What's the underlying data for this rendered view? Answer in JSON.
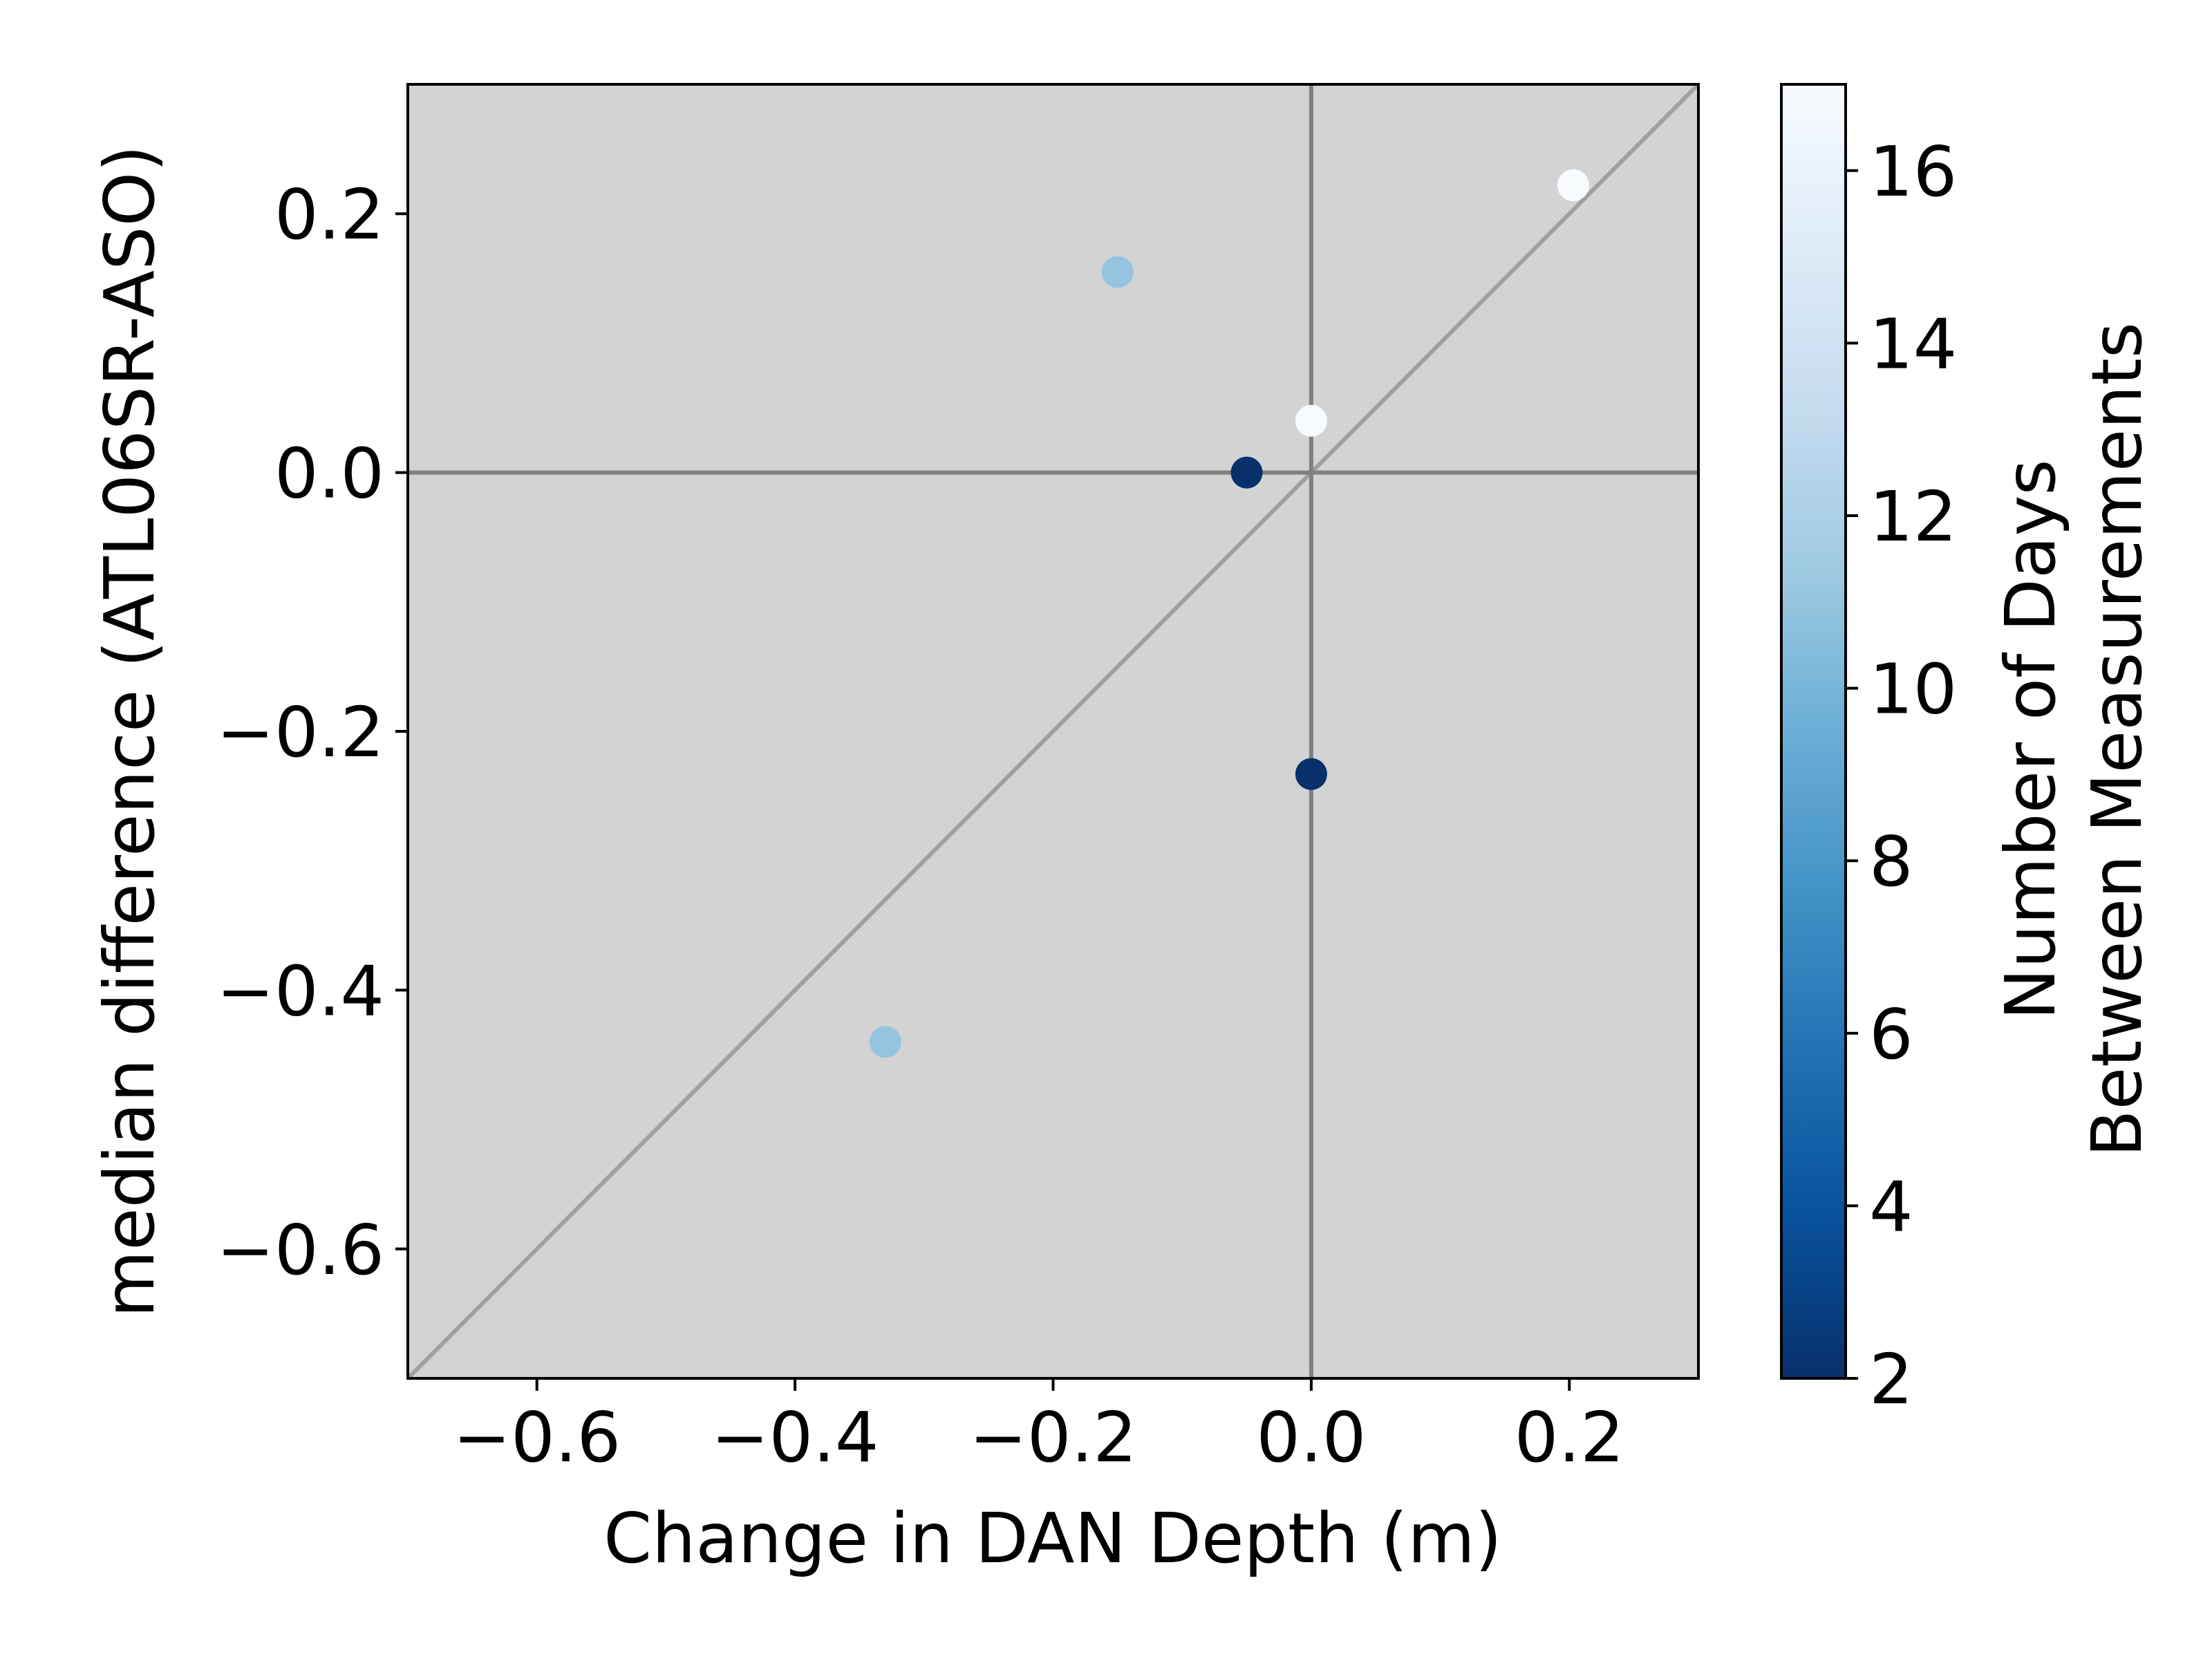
{
  "chart_data": {
    "type": "scatter",
    "title": "",
    "xlabel": "Change in DAN Depth (m)",
    "ylabel": "median difference (ATL06SR-ASO)",
    "xlim": [
      -0.7,
      0.3
    ],
    "ylim": [
      -0.7,
      0.3
    ],
    "xticks": [
      -0.6,
      -0.4,
      -0.2,
      0.0,
      0.2
    ],
    "xtick_labels": [
      "−0.6",
      "−0.4",
      "−0.2",
      "0.0",
      "0.2"
    ],
    "yticks": [
      -0.6,
      -0.4,
      -0.2,
      0.0,
      0.2
    ],
    "ytick_labels": [
      "−0.6",
      "−0.4",
      "−0.2",
      "0.0",
      "0.2"
    ],
    "grid": false,
    "background_color": "#d3d3d3",
    "reference_lines": {
      "horizontal_y": 0,
      "vertical_x": 0,
      "one_to_one": true,
      "axis_line_color": "#808080",
      "diagonal_color": "#a0a0a0"
    },
    "series": [
      {
        "points": [
          {
            "x": -0.33,
            "y": -0.44,
            "c": 11
          },
          {
            "x": -0.15,
            "y": 0.155,
            "c": 11
          },
          {
            "x": -0.05,
            "y": 0.0,
            "c": 2
          },
          {
            "x": 0.0,
            "y": 0.04,
            "c": 17
          },
          {
            "x": 0.0,
            "y": -0.233,
            "c": 2
          },
          {
            "x": 0.203,
            "y": 0.222,
            "c": 17
          }
        ]
      }
    ],
    "colorbar": {
      "label_lines": [
        "Number of Days",
        "Between Measurements"
      ],
      "range": [
        2,
        17
      ],
      "ticks": [
        2,
        4,
        6,
        8,
        10,
        12,
        14,
        16
      ],
      "colormap": "Blues_r",
      "colormap_stops": [
        "#08306b",
        "#08519c",
        "#2171b5",
        "#4292c6",
        "#6baed6",
        "#9ecae1",
        "#c6dbef",
        "#deebf7",
        "#f7fbff"
      ]
    }
  }
}
